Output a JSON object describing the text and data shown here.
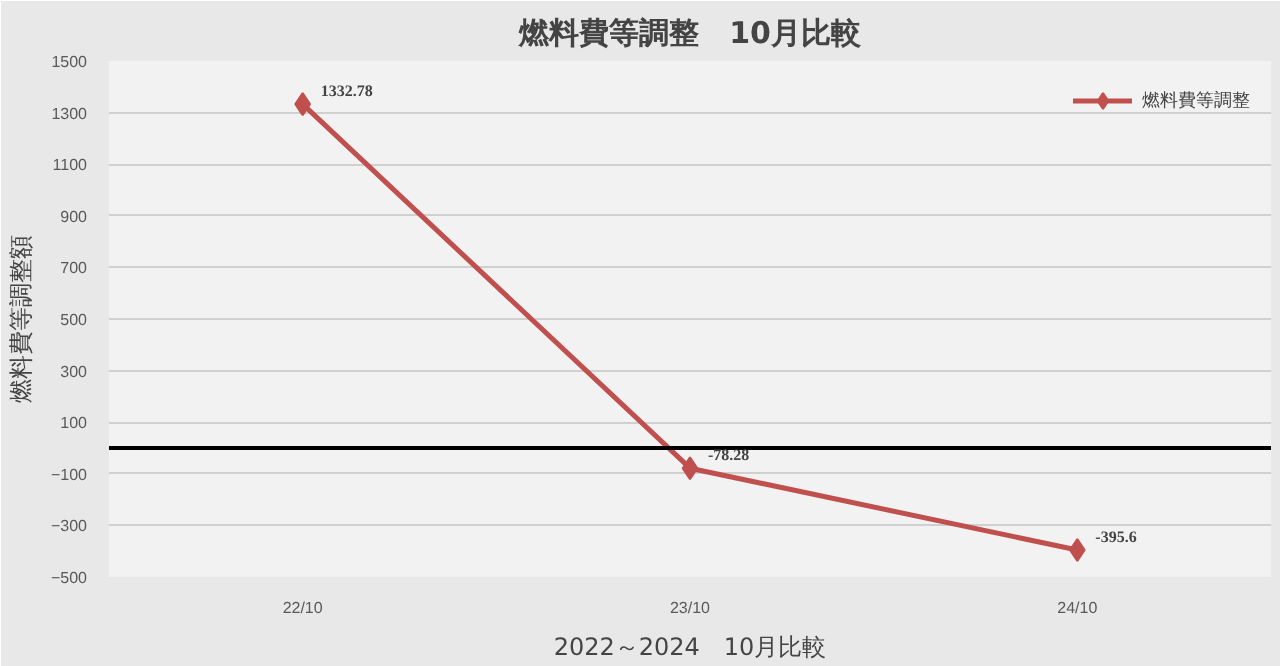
{
  "chart_data": {
    "type": "line",
    "title": "燃料費等調整　10月比較",
    "xlabel": "2022～2024　10月比較",
    "ylabel": "燃料費等調整額",
    "categories": [
      "22/10",
      "23/10",
      "24/10"
    ],
    "series": [
      {
        "name": "燃料費等調整",
        "color": "#c0504d",
        "values": [
          1332.78,
          -78.28,
          -395.6
        ]
      }
    ],
    "value_labels": [
      "1332.78",
      "-78.28",
      "-395.6"
    ],
    "ylim": [
      -500,
      1500
    ],
    "yticks": [
      -500,
      -300,
      -100,
      100,
      300,
      500,
      700,
      900,
      1100,
      1300,
      1500
    ],
    "ref_lines": [
      {
        "axis": "y",
        "value": 0,
        "label": null,
        "color": "#000000"
      }
    ],
    "grid": "y",
    "legend": "top right",
    "marker": "diamond",
    "line_style": "solid"
  }
}
